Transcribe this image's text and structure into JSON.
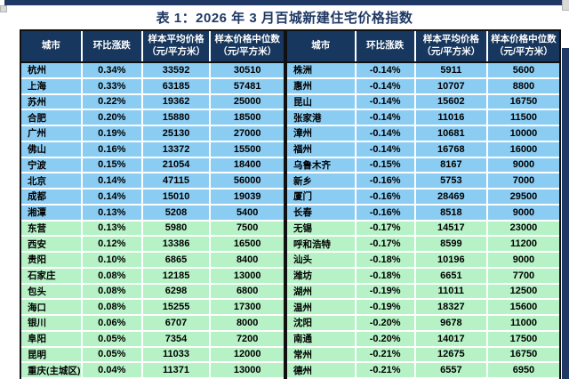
{
  "title": "表 1：2026 年 3 月百城新建住宅价格指数",
  "colors": {
    "header_bg": "#17375E",
    "accent_bar": "#1F3864",
    "row_blue": "#8BCCF3",
    "row_green": "#B6F2C6",
    "title_text": "#1F3864"
  },
  "table": {
    "columns": [
      {
        "label": "城市",
        "unit": ""
      },
      {
        "label": "环比涨跌",
        "unit": ""
      },
      {
        "label": "样本平均价格",
        "unit": "（元/平方米）"
      },
      {
        "label": "样本价格中位数",
        "unit": "（元/平方米）"
      }
    ],
    "left_rows": [
      {
        "city": "杭州",
        "change": "0.34%",
        "avg": "33592",
        "median": "30510"
      },
      {
        "city": "上海",
        "change": "0.33%",
        "avg": "63185",
        "median": "57481"
      },
      {
        "city": "苏州",
        "change": "0.22%",
        "avg": "19362",
        "median": "25000"
      },
      {
        "city": "合肥",
        "change": "0.20%",
        "avg": "15880",
        "median": "18500"
      },
      {
        "city": "广州",
        "change": "0.19%",
        "avg": "25130",
        "median": "27000"
      },
      {
        "city": "佛山",
        "change": "0.16%",
        "avg": "13372",
        "median": "15500"
      },
      {
        "city": "宁波",
        "change": "0.15%",
        "avg": "21054",
        "median": "18400"
      },
      {
        "city": "北京",
        "change": "0.14%",
        "avg": "47115",
        "median": "56000"
      },
      {
        "city": "成都",
        "change": "0.14%",
        "avg": "15010",
        "median": "19039"
      },
      {
        "city": "湘潭",
        "change": "0.13%",
        "avg": "5208",
        "median": "5400"
      },
      {
        "city": "东营",
        "change": "0.13%",
        "avg": "5980",
        "median": "7500"
      },
      {
        "city": "西安",
        "change": "0.12%",
        "avg": "13386",
        "median": "16500"
      },
      {
        "city": "贵阳",
        "change": "0.10%",
        "avg": "6865",
        "median": "8400"
      },
      {
        "city": "石家庄",
        "change": "0.08%",
        "avg": "12185",
        "median": "13000"
      },
      {
        "city": "包头",
        "change": "0.08%",
        "avg": "6298",
        "median": "6800"
      },
      {
        "city": "海口",
        "change": "0.08%",
        "avg": "15255",
        "median": "17300"
      },
      {
        "city": "银川",
        "change": "0.06%",
        "avg": "6707",
        "median": "8000"
      },
      {
        "city": "阜阳",
        "change": "0.05%",
        "avg": "7354",
        "median": "7200"
      },
      {
        "city": "昆明",
        "change": "0.05%",
        "avg": "11033",
        "median": "12000"
      },
      {
        "city": "重庆(主城区)",
        "change": "0.04%",
        "avg": "11371",
        "median": "13000"
      }
    ],
    "right_rows": [
      {
        "city": "株洲",
        "change": "-0.14%",
        "avg": "5911",
        "median": "5600"
      },
      {
        "city": "惠州",
        "change": "-0.14%",
        "avg": "10707",
        "median": "8800"
      },
      {
        "city": "昆山",
        "change": "-0.14%",
        "avg": "15602",
        "median": "16750"
      },
      {
        "city": "张家港",
        "change": "-0.14%",
        "avg": "11016",
        "median": "11500"
      },
      {
        "city": "漳州",
        "change": "-0.14%",
        "avg": "10681",
        "median": "10000"
      },
      {
        "city": "福州",
        "change": "-0.14%",
        "avg": "16768",
        "median": "16000"
      },
      {
        "city": "乌鲁木齐",
        "change": "-0.15%",
        "avg": "8167",
        "median": "9000"
      },
      {
        "city": "新乡",
        "change": "-0.16%",
        "avg": "5753",
        "median": "7000"
      },
      {
        "city": "厦门",
        "change": "-0.16%",
        "avg": "28469",
        "median": "29500"
      },
      {
        "city": "长春",
        "change": "-0.16%",
        "avg": "8518",
        "median": "9000"
      },
      {
        "city": "无锡",
        "change": "-0.17%",
        "avg": "14517",
        "median": "23000"
      },
      {
        "city": "呼和浩特",
        "change": "-0.17%",
        "avg": "8599",
        "median": "11200"
      },
      {
        "city": "汕头",
        "change": "-0.18%",
        "avg": "10196",
        "median": "9000"
      },
      {
        "city": "潍坊",
        "change": "-0.18%",
        "avg": "6651",
        "median": "7700"
      },
      {
        "city": "湖州",
        "change": "-0.19%",
        "avg": "11011",
        "median": "12500"
      },
      {
        "city": "温州",
        "change": "-0.19%",
        "avg": "18327",
        "median": "15600"
      },
      {
        "city": "沈阳",
        "change": "-0.20%",
        "avg": "9678",
        "median": "11000"
      },
      {
        "city": "南通",
        "change": "-0.20%",
        "avg": "14017",
        "median": "17500"
      },
      {
        "city": "常州",
        "change": "-0.21%",
        "avg": "12675",
        "median": "16750"
      },
      {
        "city": "德州",
        "change": "-0.21%",
        "avg": "6557",
        "median": "6950"
      }
    ]
  }
}
